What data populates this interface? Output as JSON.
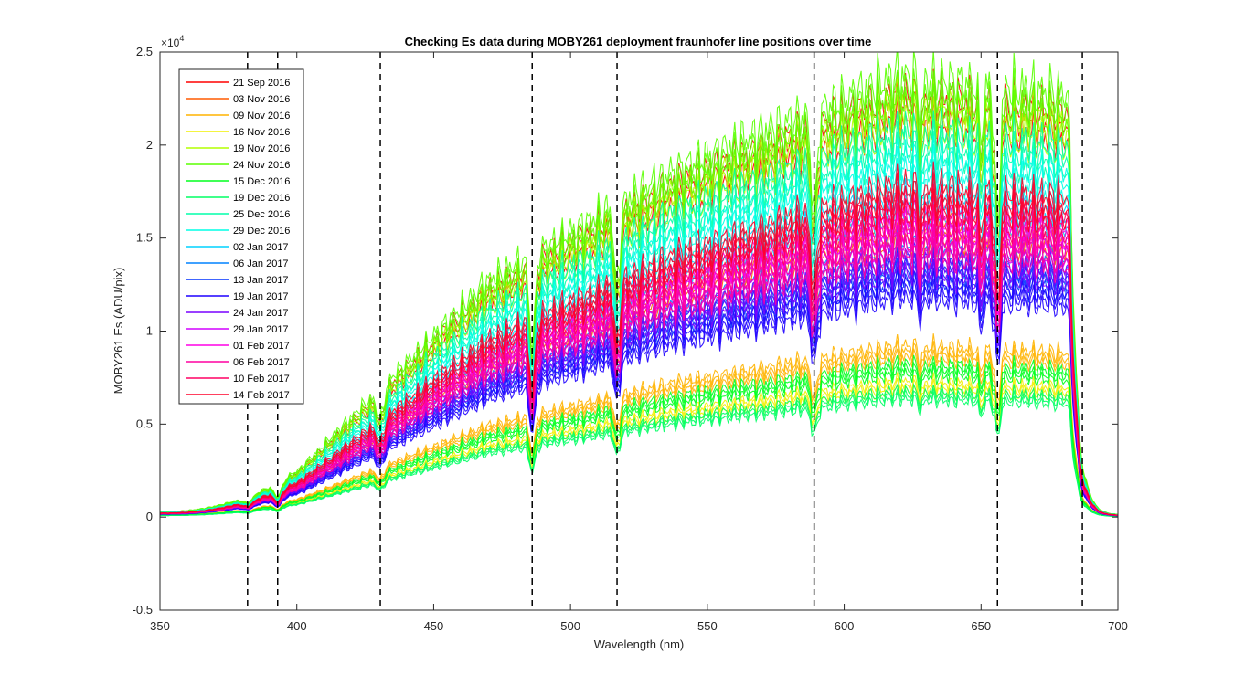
{
  "chart_data": {
    "type": "line",
    "title": "Checking Es data during MOBY261 deployment fraunhofer line positions over time",
    "xlabel": "Wavelength (nm)",
    "ylabel": "MOBY261 Es (ADU/pix)",
    "y_exponent_label": "×10",
    "y_exponent_power": "4",
    "xlim": [
      350,
      700
    ],
    "ylim": [
      -0.5,
      2.5
    ],
    "x_ticks": [
      350,
      400,
      450,
      500,
      550,
      600,
      650,
      700
    ],
    "x_tick_labels": [
      "350",
      "400",
      "450",
      "500",
      "550",
      "600",
      "650",
      "700"
    ],
    "y_ticks": [
      -0.5,
      0,
      0.5,
      1,
      1.5,
      2,
      2.5
    ],
    "y_tick_labels": [
      "-0.5",
      "0",
      "0.5",
      "1",
      "1.5",
      "2",
      "2.5"
    ],
    "grid": false,
    "legend_position": "top-left",
    "fraunhofer_lines_nm": [
      382,
      393,
      430.5,
      486,
      517,
      589,
      656,
      687
    ],
    "series": [
      {
        "name": "21 Sep 2016",
        "color": "#ff0000",
        "peak": 2.35
      },
      {
        "name": "03 Nov 2016",
        "color": "#ff5a00",
        "peak": 1.65
      },
      {
        "name": "09 Nov 2016",
        "color": "#ffb400",
        "peak": 0.95
      },
      {
        "name": "16 Nov 2016",
        "color": "#f0f000",
        "peak": 0.75
      },
      {
        "name": "19 Nov 2016",
        "color": "#b4ff00",
        "peak": 2.3
      },
      {
        "name": "24 Nov 2016",
        "color": "#5aff00",
        "peak": 2.45
      },
      {
        "name": "15 Dec 2016",
        "color": "#00ff1e",
        "peak": 0.85
      },
      {
        "name": "19 Dec 2016",
        "color": "#00ff64",
        "peak": 0.7
      },
      {
        "name": "25 Dec 2016",
        "color": "#00ffaa",
        "peak": 2.15
      },
      {
        "name": "29 Dec 2016",
        "color": "#00ffe6",
        "peak": 2.0
      },
      {
        "name": "02 Jan 2017",
        "color": "#00d2ff",
        "peak": 1.8
      },
      {
        "name": "06 Jan 2017",
        "color": "#0082ff",
        "peak": 1.5
      },
      {
        "name": "13 Jan 2017",
        "color": "#0032ff",
        "peak": 1.4
      },
      {
        "name": "19 Jan 2017",
        "color": "#1e00ff",
        "peak": 1.3
      },
      {
        "name": "24 Jan 2017",
        "color": "#7800ff",
        "peak": 1.45
      },
      {
        "name": "29 Jan 2017",
        "color": "#d200ff",
        "peak": 1.6
      },
      {
        "name": "01 Feb 2017",
        "color": "#ff00e6",
        "peak": 1.7
      },
      {
        "name": "06 Feb 2017",
        "color": "#ff00a0",
        "peak": 1.55
      },
      {
        "name": "10 Feb 2017",
        "color": "#ff0064",
        "peak": 1.75
      },
      {
        "name": "14 Feb 2017",
        "color": "#ff0028",
        "peak": 1.85
      }
    ]
  }
}
